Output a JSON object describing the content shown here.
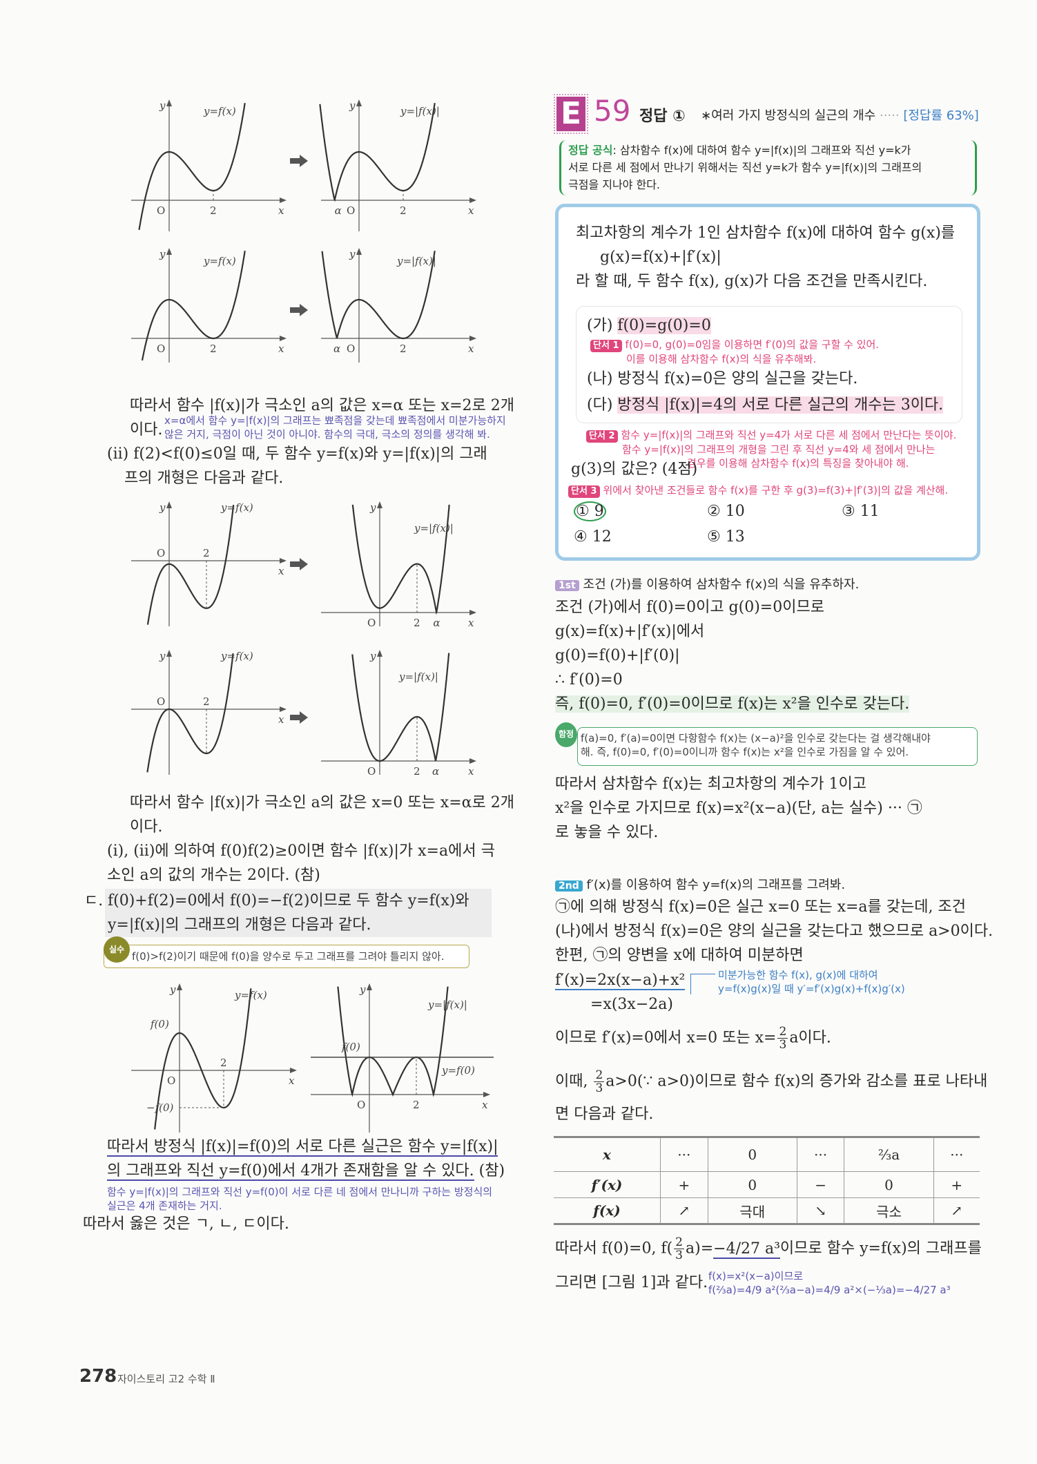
{
  "colors": {
    "badge": "#b6418f",
    "number": "#c0479a",
    "formula_label": "#2e9e4f",
    "problem_border": "#9fcbe8",
    "hint": "#e0457b",
    "note": "#5a55b0",
    "step1": "#b59fd0",
    "step2": "#3aa7cf"
  },
  "graphs": {
    "y_label": "y",
    "x_label": "x",
    "origin": "O",
    "two": "2",
    "alpha": "α",
    "f_label": "y=f(x)",
    "absf_label": "y=|f(x)|",
    "f0": "f(0)",
    "neg_f0": "−f(0)",
    "line_label": "y=f(0)",
    "arrow_icon": "right-arrow"
  },
  "left": {
    "p1": "따라서 함수 |f(x)|가 극소인 a의 값은 x=α 또는 x=2로 2개",
    "p1b": "이다.",
    "note1": [
      "x=α에서 함수 y=|f(x)|의 그래프는 뾰족점을 갖는데 뾰족점에서 미분가능하지",
      "않은 거지, 극점이 아닌 것이 아니야. 함수의 극대, 극소의 정의를 생각해 봐."
    ],
    "p2": "(ii) f(2)<f(0)≤0일 때, 두 함수 y=f(x)와 y=|f(x)|의 그래",
    "p2b": "프의 개형은 다음과 같다.",
    "p3": "따라서 함수 |f(x)|가 극소인 a의 값은 x=0 또는 x=α로 2개",
    "p3b": "이다.",
    "p4": "(i), (ii)에 의하여 f(0)f(2)≥0이면 함수 |f(x)|가 x=a에서 극",
    "p4b": "소인 a의 값의 개수는 2이다. (참)",
    "p5_mark": "ㄷ.",
    "p5": "f(0)+f(2)=0에서 f(0)=−f(2)이므로 두 함수 y=f(x)와",
    "p5b": "y=|f(x)|의 그래프의 개형은 다음과 같다.",
    "mistake_badge": "실수",
    "mistake": "f(0)>f(2)이기 때문에 f(0)을 양수로 두고 그래프를 그려야 틀리지 않아.",
    "p6": "따라서 방정식 |f(x)|=f(0)의 서로 다른 실근은 함수 y=|f(x)|",
    "p6b": "의 그래프와 직선 y=f(0)에서 4개가 존재함을 알 수 있다.",
    "p6c": " (참)",
    "note2": [
      "함수 y=|f(x)|의 그래프와 직선 y=f(0)이 서로 다른 네 점에서 만나니까 구하는 방정식의",
      "실근은 4개 존재하는 거지."
    ],
    "p7": "따라서 옳은 것은 ㄱ, ㄴ, ㄷ이다."
  },
  "header": {
    "badge": "E",
    "number": "59",
    "answer": "정답 ①",
    "topic": "∗여러 가지 방정식의 실근의 개수",
    "dots": "·····",
    "rate": "[정답률 63%]"
  },
  "formula": {
    "label": "정답 공식",
    "text1": ": 삼차함수 f(x)에 대하여 함수 y=|f(x)|의 그래프와 직선 y=k가",
    "text2": "서로 다른 세 점에서 만나기 위해서는 직선 y=k가 함수 y=|f(x)|의 그래프의",
    "text3": "극점을 지나야 한다."
  },
  "problem": {
    "intro": "최고차항의 계수가 1인 삼차함수 f(x)에 대하여 함수 g(x)를",
    "eq": "g(x)=f(x)+|f′(x)|",
    "line3": "라 할 때, 두 함수 f(x), g(x)가 다음 조건을 만족시킨다.",
    "cond_ga_mark": "(가) ",
    "cond_ga": "f(0)=g(0)=0",
    "hint1_tag": "단서 1",
    "hint1": [
      "f(0)=0, g(0)=0임을 이용하면 f′(0)의 값을 구할 수 있어.",
      "이를 이용해 삼차함수 f(x)의 식을 유추해봐."
    ],
    "cond_na": "(나) 방정식 f(x)=0은 양의 실근을 갖는다.",
    "cond_da_mark": "(다) ",
    "cond_da": "방정식 |f(x)|=4의 서로 다른 실근의 개수는 3이다.",
    "hint2_tag": "단서 2",
    "hint2": [
      "함수 y=|f(x)|의 그래프와 직선 y=4가 서로 다른 세 점에서 만난다는 뜻이야.",
      "함수 y=|f(x)|의 그래프의 개형을 그린 후 직선 y=4와 세 점에서 만나는",
      "경우를 이용해 삼차함수 f(x)의 특징을 찾아내야 해."
    ],
    "question": "g(3)의 값은? (4점)",
    "hint3_tag": "단서 3",
    "hint3": "위에서 찾아낸 조건들로 함수 f(x)를 구한 후 g(3)=f(3)+|f′(3)|의 값을 계산해.",
    "choices": [
      "① 9",
      "② 10",
      "③ 11",
      "④ 12",
      "⑤ 13"
    ],
    "selected_choice": 0
  },
  "step1": {
    "tag": "1st",
    "title": "조건 (가)를 이용하여 삼차함수 f(x)의 식을 유추하자.",
    "lines": [
      "조건 (가)에서 f(0)=0이고 g(0)=0이므로",
      "g(x)=f(x)+|f′(x)|에서",
      "g(0)=f(0)+|f′(0)|",
      "∴ f′(0)=0"
    ],
    "key": "즉, f(0)=0, f′(0)=0이므로 f(x)는 x²을 인수로 갖는다.",
    "trap_badge": "함정",
    "trap": [
      "f(a)=0, f′(a)=0이면 다항함수 f(x)는 (x−a)²을 인수로 갖는다는 걸 생각해내야",
      "해. 즉, f(0)=0, f′(0)=0이니까 함수 f(x)는 x²을 인수로 가짐을 알 수 있어."
    ],
    "after": [
      "따라서 삼차함수 f(x)는 최고차항의 계수가 1이고",
      "x²을 인수로 가지므로 f(x)=x²(x−a)(단, a는 실수) ··· ㉠",
      "로 놓을 수 있다."
    ]
  },
  "step2": {
    "tag": "2nd",
    "title": "f′(x)를 이용하여 함수 y=f(x)의 그래프를 그려봐.",
    "lines": [
      "㉠에 의해 방정식 f(x)=0은 실근 x=0 또는 x=a를 갖는데, 조건",
      "(나)에서 방정식 f(x)=0은 양의 실근을 갖는다고 했으므로 a>0이다.",
      "한편, ㉠의 양변을 x에 대하여 미분하면"
    ],
    "deriv1": "f′(x)=2x(x−a)+x²",
    "deriv2": "=x(3x−2a)",
    "deriv_note": [
      "미분가능한 함수 f(x), g(x)에 대하여",
      "y=f(x)g(x)일 때 y′=f′(x)g(x)+f(x)g′(x)"
    ],
    "crit_pre": "이므로 f′(x)=0에서 x=0 또는 x=",
    "crit_post": "a이다.",
    "frac_num": "2",
    "frac_den": "3",
    "since_pre": "이때, ",
    "since_post": "a>0(∵ a>0)이므로 함수 f(x)의 증가와 감소를 표로 나타내",
    "since_end": "면 다음과 같다.",
    "table": {
      "rows": [
        [
          "x",
          "···",
          "0",
          "···",
          "⅔a",
          "···"
        ],
        [
          "f′(x)",
          "+",
          "0",
          "−",
          "0",
          "+"
        ],
        [
          "f(x)",
          "↗",
          "극대",
          "↘",
          "극소",
          "↗"
        ]
      ]
    },
    "concl_pre": "따라서 f(0)=0, f(",
    "concl_mid": "a)=",
    "concl_val": "−4/27 a³",
    "concl_post": "이므로 함수 y=f(x)의 그래프를",
    "concl2": "그리면 [그림 1]과 같다.",
    "calc_note": [
      "f(x)=x²(x−a)이므로",
      "f(⅔a)=4/9 a²(⅔a−a)=4/9 a²×(−⅓a)=−4/27 a³"
    ]
  },
  "footer": {
    "page": "278",
    "book": "자이스토리 고2 수학 Ⅱ"
  }
}
